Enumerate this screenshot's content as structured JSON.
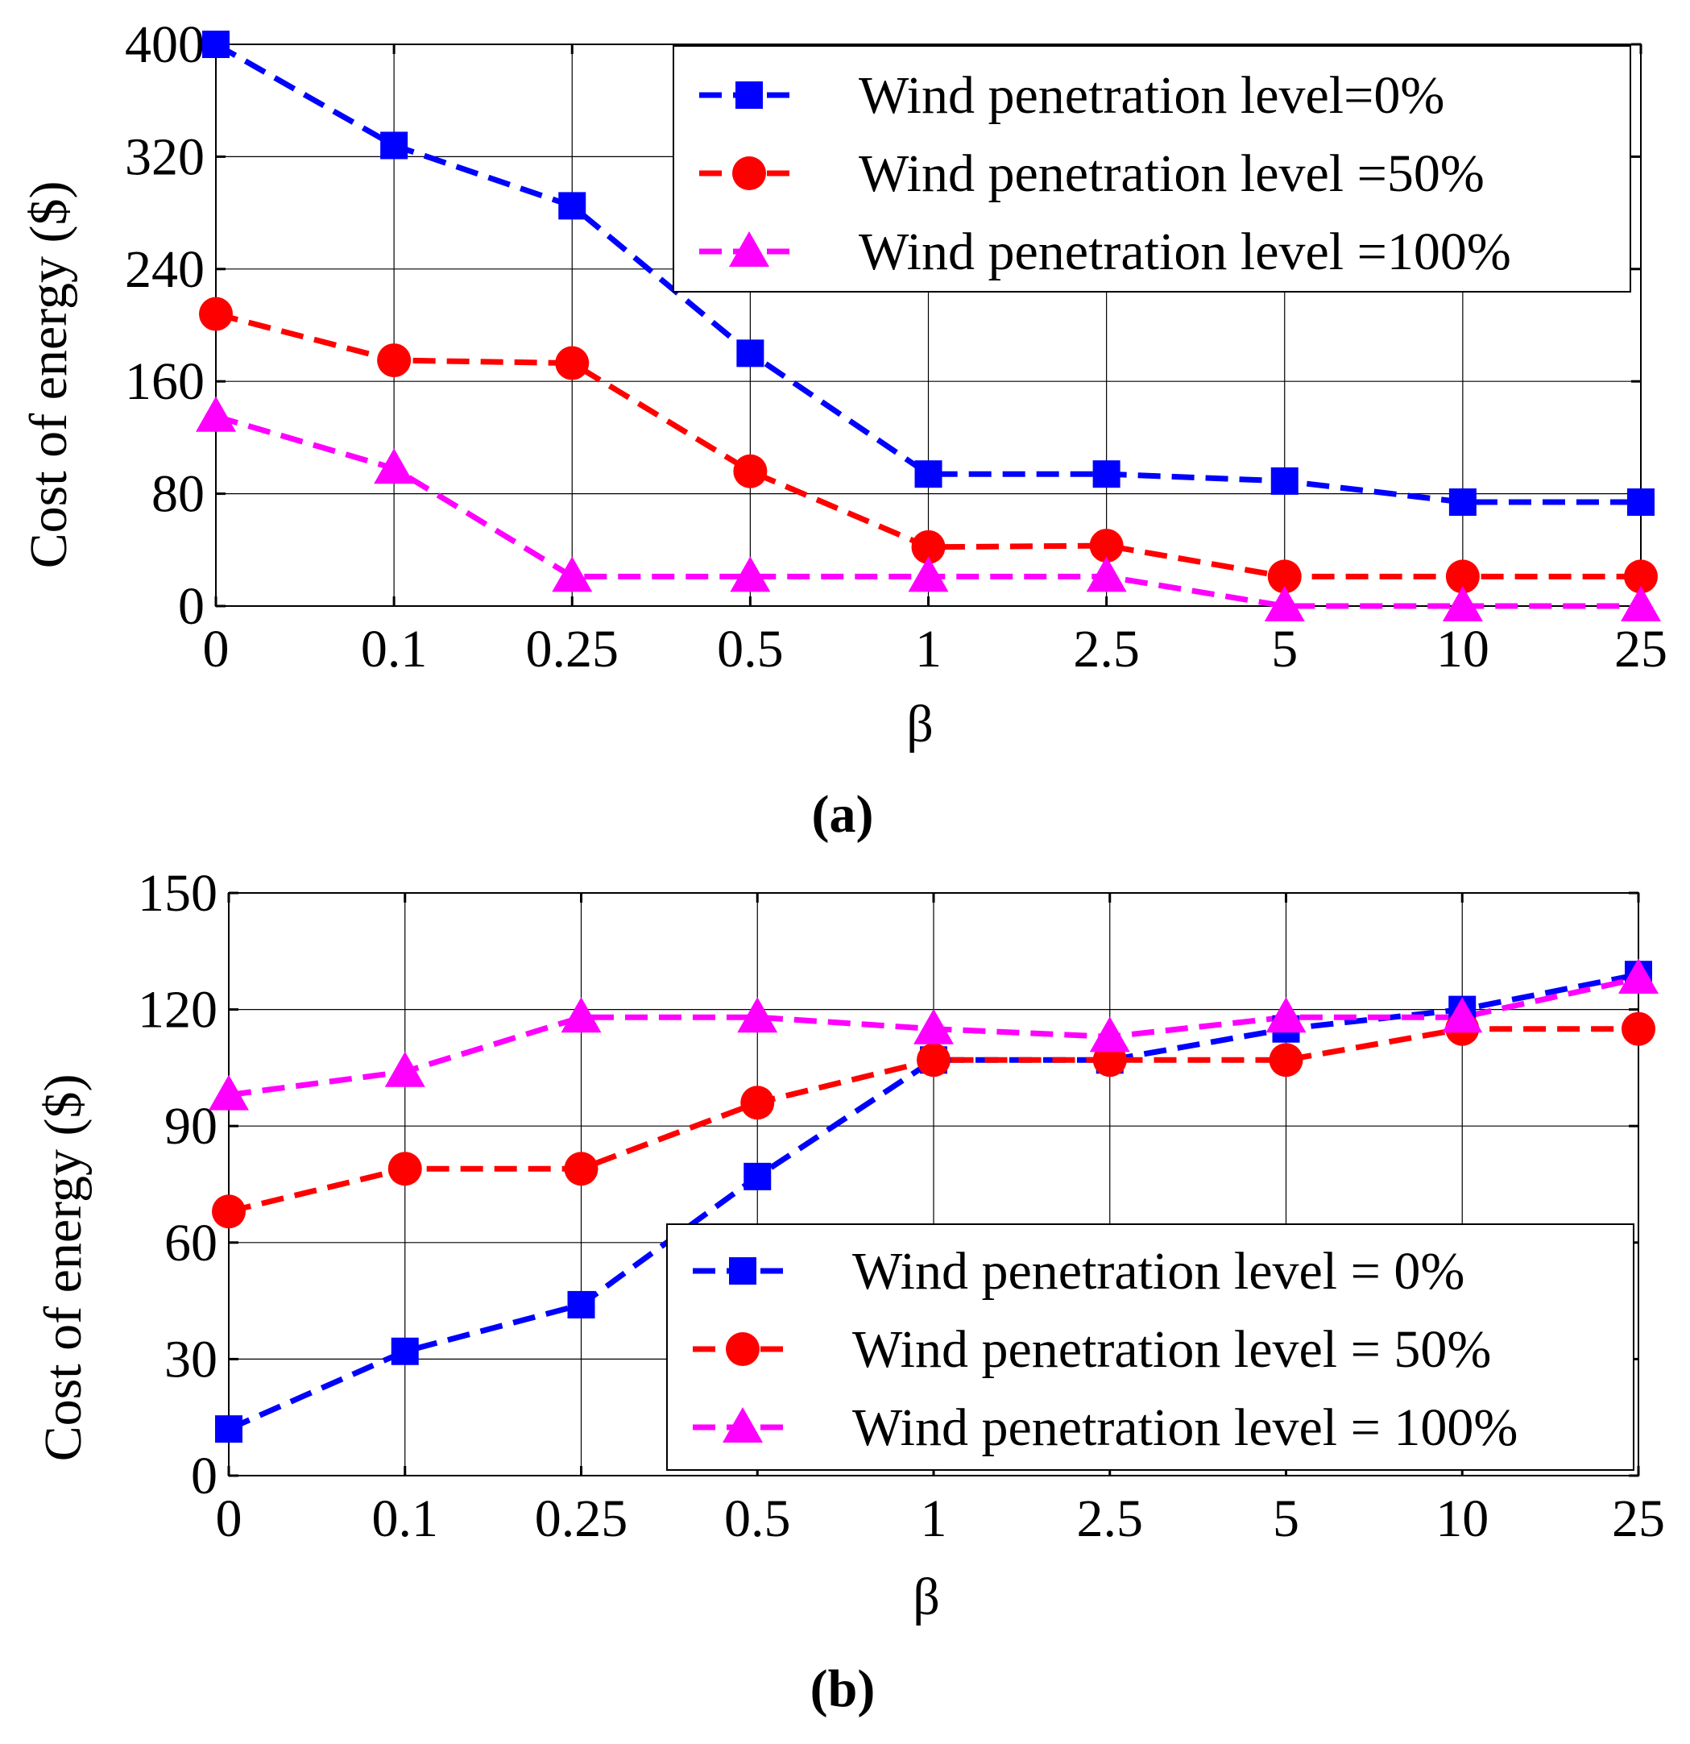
{
  "chart_data": [
    {
      "type": "line",
      "caption": "(a)",
      "xlabel": "β",
      "ylabel": "Cost of energy ($)",
      "categories": [
        "0",
        "0.1",
        "0.25",
        "0.5",
        "1",
        "2.5",
        "5",
        "10",
        "25"
      ],
      "ylim": [
        0,
        400
      ],
      "yticks": [
        0,
        80,
        160,
        240,
        320,
        400
      ],
      "grid": true,
      "legend_position": "top-right",
      "series": [
        {
          "name": "Wind penetration level=0%",
          "color": "#0000ff",
          "marker": "square",
          "values": [
            400,
            328,
            285,
            180,
            94,
            94,
            89,
            74,
            74
          ]
        },
        {
          "name": "Wind penetration level =50%",
          "color": "#ff0000",
          "marker": "circle",
          "values": [
            208,
            175,
            173,
            96,
            42,
            43,
            21,
            21,
            21
          ]
        },
        {
          "name": "Wind penetration level =100%",
          "color": "#ff00ff",
          "marker": "triangle",
          "values": [
            135,
            98,
            21,
            21,
            21,
            21,
            0,
            0,
            0
          ]
        }
      ]
    },
    {
      "type": "line",
      "caption": "(b)",
      "xlabel": "β",
      "ylabel": "Cost of energy ($)",
      "categories": [
        "0",
        "0.1",
        "0.25",
        "0.5",
        "1",
        "2.5",
        "5",
        "10",
        "25"
      ],
      "ylim": [
        0,
        150
      ],
      "yticks": [
        0,
        30,
        60,
        90,
        120,
        150
      ],
      "grid": true,
      "legend_position": "bottom-right",
      "series": [
        {
          "name": "Wind penetration level = 0%",
          "color": "#0000ff",
          "marker": "square",
          "values": [
            12,
            32,
            44,
            77,
            107,
            107,
            115,
            120,
            129
          ]
        },
        {
          "name": "Wind penetration level = 50%",
          "color": "#ff0000",
          "marker": "circle",
          "values": [
            68,
            79,
            79,
            96,
            107,
            107,
            107,
            115,
            115
          ]
        },
        {
          "name": "Wind penetration level = 100%",
          "color": "#ff00ff",
          "marker": "triangle",
          "values": [
            98,
            104,
            118,
            118,
            115,
            113,
            118,
            118,
            128
          ]
        }
      ]
    }
  ]
}
